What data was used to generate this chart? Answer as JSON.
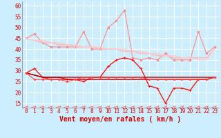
{
  "x": [
    0,
    1,
    2,
    3,
    4,
    5,
    6,
    7,
    8,
    9,
    10,
    11,
    12,
    13,
    14,
    15,
    16,
    17,
    18,
    19,
    20,
    21,
    22,
    23
  ],
  "series": [
    {
      "name": "rafales_spiky",
      "color": "#ff8888",
      "linewidth": 0.8,
      "marker": "o",
      "markersize": 2.0,
      "values": [
        45,
        47,
        43,
        41,
        41,
        41,
        41,
        48,
        40,
        40,
        50,
        53,
        58,
        36,
        35,
        36,
        35,
        38,
        35,
        35,
        35,
        48,
        38,
        41
      ]
    },
    {
      "name": "rafales_smooth1",
      "color": "#ffbbbb",
      "linewidth": 1.2,
      "marker": null,
      "markersize": 0,
      "values": [
        45,
        44,
        43,
        43,
        42,
        42,
        41,
        41,
        41,
        40,
        40,
        40,
        39,
        39,
        38,
        38,
        37,
        37,
        36,
        36,
        36,
        36,
        36,
        40
      ]
    },
    {
      "name": "rafales_smooth2",
      "color": "#ffcccc",
      "linewidth": 1.0,
      "marker": null,
      "markersize": 0,
      "values": [
        45,
        44,
        44,
        43,
        43,
        42,
        42,
        41,
        41,
        41,
        40,
        40,
        40,
        39,
        39,
        38,
        38,
        37,
        37,
        36,
        36,
        35,
        35,
        40
      ]
    },
    {
      "name": "vent_spiky",
      "color": "#ff0000",
      "linewidth": 0.9,
      "marker": "+",
      "markersize": 3.5,
      "values": [
        29,
        31,
        27,
        26,
        26,
        26,
        26,
        25,
        27,
        27,
        32,
        35,
        36,
        35,
        31,
        23,
        22,
        15,
        22,
        22,
        21,
        26,
        26,
        27
      ]
    },
    {
      "name": "vent_smooth1",
      "color": "#cc0000",
      "linewidth": 1.0,
      "marker": null,
      "markersize": 0,
      "values": [
        29,
        28,
        27,
        27,
        27,
        26,
        26,
        26,
        26,
        26,
        26,
        26,
        26,
        26,
        26,
        26,
        26,
        26,
        26,
        26,
        26,
        26,
        26,
        27
      ]
    },
    {
      "name": "vent_smooth2",
      "color": "#aa0000",
      "linewidth": 1.0,
      "marker": null,
      "markersize": 0,
      "values": [
        29,
        28,
        27,
        27,
        27,
        27,
        27,
        27,
        27,
        27,
        27,
        27,
        27,
        27,
        27,
        27,
        27,
        27,
        27,
        27,
        27,
        27,
        27,
        27
      ]
    },
    {
      "name": "vent_dotted",
      "color": "#ff4444",
      "linewidth": 0.8,
      "marker": "D",
      "markersize": 1.5,
      "values": [
        29,
        26,
        26,
        26,
        26,
        25,
        26,
        27,
        27,
        27,
        27,
        27,
        27,
        27,
        27,
        26,
        26,
        26,
        26,
        26,
        26,
        26,
        26,
        27
      ]
    }
  ],
  "xlabel": "Vent moyen/en rafales ( km/h )",
  "ylim": [
    13,
    62
  ],
  "yticks": [
    15,
    20,
    25,
    30,
    35,
    40,
    45,
    50,
    55,
    60
  ],
  "xticks": [
    0,
    1,
    2,
    3,
    4,
    5,
    6,
    7,
    8,
    9,
    10,
    11,
    12,
    13,
    14,
    15,
    16,
    17,
    18,
    19,
    20,
    21,
    22,
    23
  ],
  "bg_color": "#cceeff",
  "grid_color": "#ffffff",
  "xlabel_fontsize": 7,
  "tick_fontsize": 5.5,
  "label_color": "#cc0000"
}
